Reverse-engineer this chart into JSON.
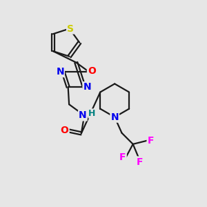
{
  "bg_color": "#e6e6e6",
  "bond_color": "#1a1a1a",
  "atom_colors": {
    "S": "#cccc00",
    "O": "#ff0000",
    "N": "#0000ee",
    "H": "#008080",
    "F": "#ff00ff",
    "C": "#1a1a1a"
  },
  "figure_size": [
    3.0,
    3.0
  ],
  "dpi": 100,
  "lw": 1.6,
  "fontsize": 9.5
}
